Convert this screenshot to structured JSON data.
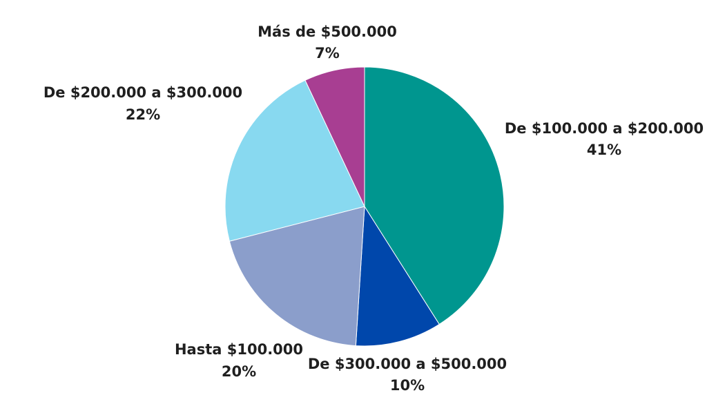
{
  "chart_data": {
    "type": "pie",
    "title": "",
    "start_angle_deg": 0,
    "direction": "clockwise",
    "slices": [
      {
        "label": "De $100.000 a $200.000",
        "value": 41,
        "display": "41%",
        "color": "#00968f"
      },
      {
        "label": "De $300.000 a $500.000",
        "value": 10,
        "display": "10%",
        "color": "#0047ab"
      },
      {
        "label": "Hasta $100.000",
        "value": 20,
        "display": "20%",
        "color": "#8b9ecb"
      },
      {
        "label": "De $200.000 a $300.000",
        "value": 22,
        "display": "22%",
        "color": "#88d9f0"
      },
      {
        "label": "Más de $500.000",
        "value": 7,
        "display": "7%",
        "color": "#a83e92"
      }
    ]
  }
}
